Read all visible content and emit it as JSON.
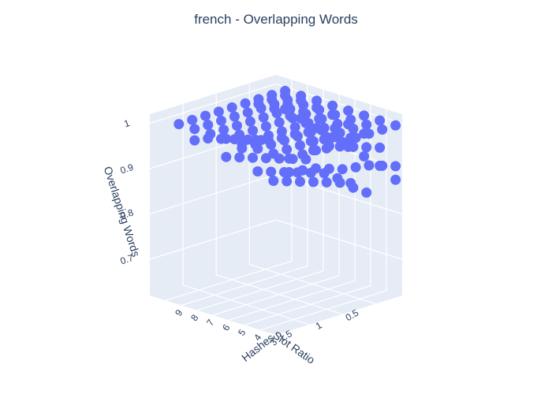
{
  "chart_data": {
    "type": "scatter3d",
    "title": "french - Overlapping Words",
    "xlabel": "Slot Ratio",
    "ylabel": "Hashes",
    "zlabel": "Overlapping Words",
    "x_ticks": [
      "0.5",
      "1",
      "1.5"
    ],
    "y_ticks": [
      "3",
      "4",
      "5",
      "6",
      "7",
      "8",
      "9"
    ],
    "z_ticks": [
      "0.7",
      "0.8",
      "0.9",
      "1"
    ],
    "x_range": [
      0.1,
      2.0
    ],
    "y_range": [
      2,
      10
    ],
    "z_range": [
      0.62,
      1.02
    ],
    "marker_color": "#636efa",
    "pane_color": "#e5ecf6",
    "grid_color": "#ffffff",
    "points": [
      {
        "x": 0.2,
        "y": 2,
        "z": 1.0
      },
      {
        "x": 0.2,
        "y": 3,
        "z": 1.0
      },
      {
        "x": 0.2,
        "y": 4,
        "z": 1.0
      },
      {
        "x": 0.2,
        "y": 5,
        "z": 1.0
      },
      {
        "x": 0.2,
        "y": 6,
        "z": 1.0
      },
      {
        "x": 0.2,
        "y": 7,
        "z": 1.0
      },
      {
        "x": 0.2,
        "y": 8,
        "z": 1.0
      },
      {
        "x": 0.2,
        "y": 9,
        "z": 1.0
      },
      {
        "x": 0.4,
        "y": 2,
        "z": 1.0
      },
      {
        "x": 0.4,
        "y": 3,
        "z": 1.0
      },
      {
        "x": 0.4,
        "y": 4,
        "z": 1.0
      },
      {
        "x": 0.4,
        "y": 5,
        "z": 1.0
      },
      {
        "x": 0.4,
        "y": 6,
        "z": 1.0
      },
      {
        "x": 0.4,
        "y": 7,
        "z": 1.0
      },
      {
        "x": 0.4,
        "y": 8,
        "z": 1.0
      },
      {
        "x": 0.4,
        "y": 9,
        "z": 1.0
      },
      {
        "x": 0.6,
        "y": 2,
        "z": 1.0
      },
      {
        "x": 0.6,
        "y": 3,
        "z": 1.0
      },
      {
        "x": 0.6,
        "y": 4,
        "z": 1.0
      },
      {
        "x": 0.6,
        "y": 5,
        "z": 1.0
      },
      {
        "x": 0.6,
        "y": 6,
        "z": 1.0
      },
      {
        "x": 0.6,
        "y": 7,
        "z": 1.0
      },
      {
        "x": 0.6,
        "y": 8,
        "z": 1.0
      },
      {
        "x": 0.6,
        "y": 9,
        "z": 1.0
      },
      {
        "x": 0.8,
        "y": 2,
        "z": 1.0
      },
      {
        "x": 0.8,
        "y": 3,
        "z": 1.0
      },
      {
        "x": 0.8,
        "y": 4,
        "z": 1.0
      },
      {
        "x": 0.8,
        "y": 5,
        "z": 1.0
      },
      {
        "x": 0.8,
        "y": 6,
        "z": 1.0
      },
      {
        "x": 0.8,
        "y": 7,
        "z": 1.0
      },
      {
        "x": 0.8,
        "y": 8,
        "z": 1.0
      },
      {
        "x": 0.8,
        "y": 9,
        "z": 1.0
      },
      {
        "x": 1.0,
        "y": 2,
        "z": 1.0
      },
      {
        "x": 1.0,
        "y": 3,
        "z": 1.0
      },
      {
        "x": 1.0,
        "y": 4,
        "z": 1.0
      },
      {
        "x": 1.0,
        "y": 5,
        "z": 1.0
      },
      {
        "x": 1.0,
        "y": 6,
        "z": 1.0
      },
      {
        "x": 1.0,
        "y": 7,
        "z": 1.0
      },
      {
        "x": 1.0,
        "y": 8,
        "z": 1.0
      },
      {
        "x": 1.0,
        "y": 9,
        "z": 1.0
      },
      {
        "x": 1.2,
        "y": 2,
        "z": 1.0
      },
      {
        "x": 1.2,
        "y": 3,
        "z": 1.0
      },
      {
        "x": 1.2,
        "y": 4,
        "z": 1.0
      },
      {
        "x": 1.2,
        "y": 5,
        "z": 1.0
      },
      {
        "x": 1.2,
        "y": 6,
        "z": 1.0
      },
      {
        "x": 1.2,
        "y": 7,
        "z": 1.0
      },
      {
        "x": 1.2,
        "y": 8,
        "z": 1.0
      },
      {
        "x": 1.2,
        "y": 9,
        "z": 1.0
      },
      {
        "x": 1.4,
        "y": 2,
        "z": 1.0
      },
      {
        "x": 1.4,
        "y": 3,
        "z": 1.0
      },
      {
        "x": 1.4,
        "y": 4,
        "z": 1.0
      },
      {
        "x": 1.4,
        "y": 5,
        "z": 1.0
      },
      {
        "x": 1.4,
        "y": 6,
        "z": 1.0
      },
      {
        "x": 1.4,
        "y": 7,
        "z": 1.0
      },
      {
        "x": 1.4,
        "y": 8,
        "z": 1.0
      },
      {
        "x": 1.4,
        "y": 9,
        "z": 1.0
      },
      {
        "x": 1.6,
        "y": 2,
        "z": 1.0
      },
      {
        "x": 1.6,
        "y": 3,
        "z": 1.0
      },
      {
        "x": 1.6,
        "y": 4,
        "z": 1.0
      },
      {
        "x": 1.6,
        "y": 5,
        "z": 1.0
      },
      {
        "x": 1.6,
        "y": 6,
        "z": 1.0
      },
      {
        "x": 1.6,
        "y": 7,
        "z": 1.0
      },
      {
        "x": 1.6,
        "y": 8,
        "z": 1.0
      },
      {
        "x": 1.6,
        "y": 9,
        "z": 1.0
      },
      {
        "x": 1.8,
        "y": 2,
        "z": 1.0
      },
      {
        "x": 1.8,
        "y": 3,
        "z": 1.0
      },
      {
        "x": 1.8,
        "y": 4,
        "z": 1.0
      },
      {
        "x": 1.8,
        "y": 5,
        "z": 1.0
      },
      {
        "x": 1.8,
        "y": 6,
        "z": 1.0
      },
      {
        "x": 1.8,
        "y": 7,
        "z": 1.0
      },
      {
        "x": 1.8,
        "y": 8,
        "z": 1.0
      },
      {
        "x": 1.8,
        "y": 9,
        "z": 1.0
      },
      {
        "x": 0.2,
        "y": 3,
        "z": 0.94
      },
      {
        "x": 0.2,
        "y": 4,
        "z": 0.96
      },
      {
        "x": 0.2,
        "y": 5,
        "z": 0.97
      },
      {
        "x": 0.2,
        "y": 6,
        "z": 0.98
      },
      {
        "x": 0.2,
        "y": 7,
        "z": 0.985
      },
      {
        "x": 0.2,
        "y": 8,
        "z": 0.99
      },
      {
        "x": 0.2,
        "y": 9,
        "z": 0.99
      },
      {
        "x": 0.4,
        "y": 3,
        "z": 0.95
      },
      {
        "x": 0.4,
        "y": 4,
        "z": 0.96
      },
      {
        "x": 0.4,
        "y": 5,
        "z": 0.97
      },
      {
        "x": 0.4,
        "y": 6,
        "z": 0.98
      },
      {
        "x": 0.4,
        "y": 7,
        "z": 0.985
      },
      {
        "x": 0.4,
        "y": 8,
        "z": 0.99
      },
      {
        "x": 0.4,
        "y": 9,
        "z": 0.99
      },
      {
        "x": 0.6,
        "y": 3,
        "z": 0.96
      },
      {
        "x": 0.6,
        "y": 4,
        "z": 0.97
      },
      {
        "x": 0.6,
        "y": 5,
        "z": 0.975
      },
      {
        "x": 0.6,
        "y": 6,
        "z": 0.98
      },
      {
        "x": 0.6,
        "y": 7,
        "z": 0.985
      },
      {
        "x": 0.6,
        "y": 8,
        "z": 0.99
      },
      {
        "x": 0.6,
        "y": 9,
        "z": 0.99
      },
      {
        "x": 0.8,
        "y": 3,
        "z": 0.97
      },
      {
        "x": 0.8,
        "y": 4,
        "z": 0.975
      },
      {
        "x": 0.8,
        "y": 5,
        "z": 0.98
      },
      {
        "x": 1.0,
        "y": 3,
        "z": 0.975
      },
      {
        "x": 1.0,
        "y": 4,
        "z": 0.98
      },
      {
        "x": 1.2,
        "y": 3,
        "z": 0.98
      },
      {
        "x": 0.2,
        "y": 2,
        "z": 0.91
      },
      {
        "x": 0.4,
        "y": 2,
        "z": 0.92
      },
      {
        "x": 0.6,
        "y": 2,
        "z": 0.93
      },
      {
        "x": 0.8,
        "y": 2,
        "z": 0.935
      },
      {
        "x": 1.0,
        "y": 2,
        "z": 0.94
      },
      {
        "x": 1.2,
        "y": 2,
        "z": 0.95
      },
      {
        "x": 1.4,
        "y": 2,
        "z": 0.96
      },
      {
        "x": 1.6,
        "y": 2,
        "z": 0.965
      },
      {
        "x": 1.8,
        "y": 2,
        "z": 0.97
      },
      {
        "x": 0.4,
        "y": 3,
        "z": 0.85
      },
      {
        "x": 0.6,
        "y": 3,
        "z": 0.87
      },
      {
        "x": 0.8,
        "y": 3,
        "z": 0.89
      },
      {
        "x": 1.0,
        "y": 3,
        "z": 0.9
      },
      {
        "x": 1.2,
        "y": 3,
        "z": 0.91
      },
      {
        "x": 1.4,
        "y": 3,
        "z": 0.92
      },
      {
        "x": 1.6,
        "y": 3,
        "z": 0.93
      },
      {
        "x": 1.8,
        "y": 3,
        "z": 0.94
      },
      {
        "x": 0.2,
        "y": 2,
        "z": 0.88
      },
      {
        "x": 0.2,
        "y": 3,
        "z": 0.9
      },
      {
        "x": 0.2,
        "y": 4,
        "z": 0.91
      },
      {
        "x": 0.2,
        "y": 5,
        "z": 0.92
      },
      {
        "x": 0.2,
        "y": 6,
        "z": 0.93
      },
      {
        "x": 0.2,
        "y": 7,
        "z": 0.94
      },
      {
        "x": 0.2,
        "y": 8,
        "z": 0.95
      },
      {
        "x": 0.2,
        "y": 9,
        "z": 0.96
      },
      {
        "x": 0.4,
        "y": 4,
        "z": 0.86
      },
      {
        "x": 0.6,
        "y": 4,
        "z": 0.88
      },
      {
        "x": 0.8,
        "y": 4,
        "z": 0.9
      },
      {
        "x": 1.0,
        "y": 4,
        "z": 0.91
      },
      {
        "x": 1.2,
        "y": 4,
        "z": 0.92
      },
      {
        "x": 1.4,
        "y": 4,
        "z": 0.93
      },
      {
        "x": 1.6,
        "y": 4,
        "z": 0.94
      },
      {
        "x": 1.8,
        "y": 4,
        "z": 0.95
      },
      {
        "x": 0.6,
        "y": 6,
        "z": 0.9
      },
      {
        "x": 0.8,
        "y": 6,
        "z": 0.91
      },
      {
        "x": 1.0,
        "y": 6,
        "z": 0.92
      },
      {
        "x": 1.2,
        "y": 6,
        "z": 0.93
      },
      {
        "x": 1.4,
        "y": 6,
        "z": 0.94
      },
      {
        "x": 1.6,
        "y": 6,
        "z": 0.95
      },
      {
        "x": 1.8,
        "y": 6,
        "z": 0.96
      },
      {
        "x": 0.8,
        "y": 8,
        "z": 0.93
      },
      {
        "x": 1.0,
        "y": 8,
        "z": 0.94
      },
      {
        "x": 1.2,
        "y": 8,
        "z": 0.95
      },
      {
        "x": 1.4,
        "y": 8,
        "z": 0.96
      },
      {
        "x": 1.6,
        "y": 8,
        "z": 0.97
      },
      {
        "x": 1.8,
        "y": 8,
        "z": 0.975
      },
      {
        "x": 1.0,
        "y": 5,
        "z": 0.985
      },
      {
        "x": 1.2,
        "y": 5,
        "z": 0.985
      },
      {
        "x": 1.4,
        "y": 5,
        "z": 0.99
      },
      {
        "x": 1.6,
        "y": 5,
        "z": 0.99
      },
      {
        "x": 1.8,
        "y": 5,
        "z": 0.99
      }
    ]
  }
}
